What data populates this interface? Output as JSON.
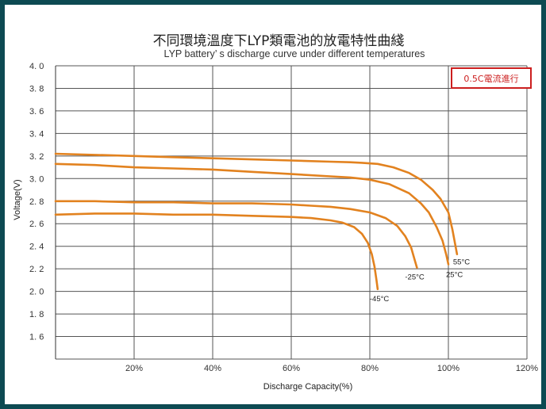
{
  "chart_data": {
    "type": "line",
    "title": "不同環境溫度下LYP類電池的放電特性曲綫",
    "subtitle": "LYP battery’ s discharge curve under different temperatures",
    "xlabel": "Discharge Capacity(%)",
    "ylabel": "Voltage(V)",
    "xlim": [
      0,
      120
    ],
    "ylim": [
      1.4,
      4.0
    ],
    "x_ticks": [
      "20%",
      "40%",
      "60%",
      "80%",
      "100%",
      "120%"
    ],
    "y_ticks": [
      "4. 0",
      "3. 8",
      "3. 6",
      "3. 4",
      "3. 2",
      "3. 0",
      "2. 8",
      "2. 6",
      "2. 4",
      "2. 2",
      "2. 0",
      "1. 8",
      "1. 6"
    ],
    "grid": true,
    "annotation": "0.5C電流進行",
    "series": [
      {
        "name": "55°C",
        "x": [
          0,
          10,
          20,
          30,
          40,
          50,
          60,
          70,
          75,
          78,
          82,
          86,
          90,
          93,
          96,
          98,
          100,
          101,
          102.2
        ],
        "y": [
          3.22,
          3.21,
          3.2,
          3.19,
          3.18,
          3.17,
          3.16,
          3.15,
          3.145,
          3.14,
          3.13,
          3.1,
          3.05,
          2.99,
          2.9,
          2.82,
          2.7,
          2.55,
          2.33
        ]
      },
      {
        "name": "25°C",
        "x": [
          0,
          10,
          20,
          30,
          40,
          50,
          60,
          70,
          75,
          80,
          85,
          90,
          93,
          95,
          97,
          98.5,
          99.5,
          100
        ],
        "y": [
          3.13,
          3.12,
          3.1,
          3.09,
          3.08,
          3.06,
          3.04,
          3.02,
          3.01,
          2.99,
          2.95,
          2.87,
          2.78,
          2.7,
          2.57,
          2.45,
          2.32,
          2.24
        ]
      },
      {
        "name": "-25°C",
        "x": [
          0,
          10,
          20,
          30,
          40,
          50,
          60,
          65,
          70,
          75,
          80,
          84,
          87,
          89,
          90.5,
          91.5,
          92
        ],
        "y": [
          2.8,
          2.8,
          2.79,
          2.79,
          2.78,
          2.78,
          2.77,
          2.76,
          2.75,
          2.73,
          2.7,
          2.65,
          2.58,
          2.49,
          2.39,
          2.27,
          2.21
        ]
      },
      {
        "name": "-45°C",
        "x": [
          0,
          10,
          20,
          30,
          40,
          50,
          60,
          65,
          70,
          73,
          76,
          78,
          79.5,
          80.5,
          81.2,
          81.7,
          82
        ],
        "y": [
          2.68,
          2.69,
          2.69,
          2.68,
          2.68,
          2.67,
          2.66,
          2.65,
          2.63,
          2.61,
          2.57,
          2.51,
          2.43,
          2.33,
          2.22,
          2.1,
          2.02
        ]
      }
    ]
  }
}
